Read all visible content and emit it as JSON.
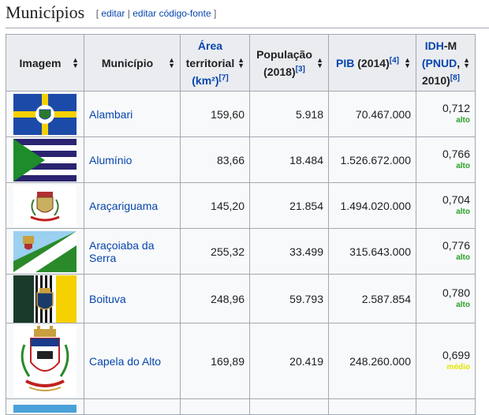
{
  "section": {
    "title": "Municípios",
    "edit_open": "[",
    "edit_label": "editar",
    "edit_sep": "|",
    "edit_source_label": "editar código-fonte",
    "edit_close": "]"
  },
  "table": {
    "headers": {
      "imagem": "Imagem",
      "municipio": "Município",
      "area": "Área",
      "area_rest": "territorial",
      "area_unit": "(km²)",
      "area_ref": "[7]",
      "populacao": "População",
      "populacao_year": "(2018)",
      "populacao_ref": "[3]",
      "pib": "PIB",
      "pib_year": "(2014)",
      "pib_ref": "[4]",
      "idh": "IDH",
      "idh_suffix": "-M",
      "idh_pnud": "(PNUD",
      "idh_year": ", 2010)",
      "idh_ref": "[8]"
    },
    "rows": [
      {
        "name": "Alambari",
        "area": "159,60",
        "pop": "5.918",
        "pib": "70.467.000",
        "idh": "0,712",
        "level": "alto",
        "level_color": "#2ca02c",
        "image_icon": "alambari-flag-icon"
      },
      {
        "name": "Alumínio",
        "area": "83,66",
        "pop": "18.484",
        "pib": "1.526.672.000",
        "idh": "0,766",
        "level": "alto",
        "level_color": "#2ca02c",
        "image_icon": "aluminio-flag-icon"
      },
      {
        "name": "Araçariguama",
        "area": "145,20",
        "pop": "21.854",
        "pib": "1.494.020.000",
        "idh": "0,704",
        "level": "alto",
        "level_color": "#2ca02c",
        "image_icon": "aracariguama-coat-icon"
      },
      {
        "name": "Araçoiaba da Serra",
        "area": "255,32",
        "pop": "33.499",
        "pib": "315.643.000",
        "idh": "0,776",
        "level": "alto",
        "level_color": "#2ca02c",
        "image_icon": "aracoiaba-flag-icon"
      },
      {
        "name": "Boituva",
        "area": "248,96",
        "pop": "59.793",
        "pib": "2.587.854",
        "idh": "0,780",
        "level": "alto",
        "level_color": "#2ca02c",
        "image_icon": "boituva-flag-icon"
      },
      {
        "name": "Capela do Alto",
        "area": "169,89",
        "pop": "20.419",
        "pib": "248.260.000",
        "idh": "0,699",
        "level": "médio",
        "level_color": "#e5e500",
        "image_icon": "capela-coat-icon"
      }
    ]
  }
}
